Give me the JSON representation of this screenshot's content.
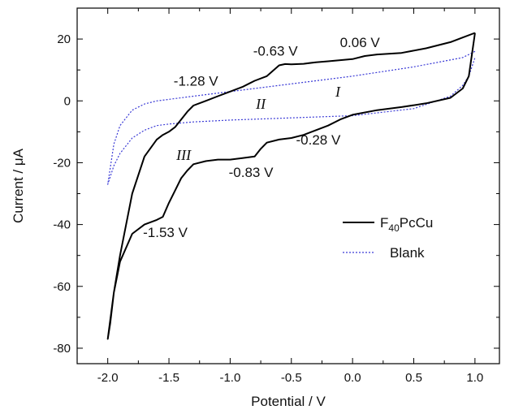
{
  "chart_data": {
    "type": "line",
    "xlabel": "Potential / V",
    "ylabel": "Current / μA",
    "xlim": [
      -2.25,
      1.2
    ],
    "ylim": [
      -85,
      30
    ],
    "xticks": [
      -2.0,
      -1.5,
      -1.0,
      -0.5,
      0.0,
      0.5,
      1.0
    ],
    "xtick_labels": [
      "-2.0",
      "-1.5",
      "-1.0",
      "-0.5",
      "0.0",
      "0.5",
      "1.0"
    ],
    "yticks": [
      20,
      0,
      -20,
      -40,
      -60,
      -80
    ],
    "ytick_labels": [
      "20",
      "0",
      "-20",
      "-40",
      "-60",
      "-80"
    ],
    "legend": {
      "placement": "bottom-right",
      "entries": [
        {
          "name": "F40PcCu",
          "base": "F",
          "subscript": "40",
          "rest": "PcCu",
          "color": "#000000",
          "style": "solid"
        },
        {
          "name": "Blank",
          "color": "#3a3ad6",
          "style": "dotted"
        }
      ]
    },
    "series": [
      {
        "name": "F40PcCu",
        "color": "#000000",
        "style": "solid",
        "x": [
          1.0,
          0.9,
          0.8,
          0.6,
          0.4,
          0.2,
          0.1,
          0.0,
          -0.2,
          -0.3,
          -0.4,
          -0.5,
          -0.55,
          -0.6,
          -0.7,
          -0.8,
          -0.85,
          -0.9,
          -1.0,
          -1.1,
          -1.2,
          -1.3,
          -1.35,
          -1.45,
          -1.5,
          -1.55,
          -1.6,
          -1.7,
          -1.8,
          -1.9,
          -1.95,
          -2.0,
          -1.98,
          -1.95,
          -1.9,
          -1.8,
          -1.7,
          -1.6,
          -1.55,
          -1.5,
          -1.45,
          -1.4,
          -1.35,
          -1.3,
          -1.2,
          -1.1,
          -1.0,
          -0.9,
          -0.8,
          -0.75,
          -0.7,
          -0.6,
          -0.5,
          -0.4,
          -0.3,
          -0.2,
          -0.1,
          0.0,
          0.2,
          0.4,
          0.6,
          0.8,
          0.9,
          0.95,
          1.0
        ],
        "y": [
          22.0,
          20.5,
          19.0,
          17.0,
          15.5,
          15.0,
          14.5,
          13.5,
          12.8,
          12.5,
          12.0,
          11.8,
          11.9,
          11.5,
          8.0,
          6.5,
          5.5,
          4.5,
          3.0,
          1.5,
          0.0,
          -1.5,
          -3.5,
          -8.5,
          -10.0,
          -11.0,
          -12.5,
          -18.0,
          -30.0,
          -50.0,
          -62.0,
          -77.0,
          -72.0,
          -62.0,
          -52.0,
          -43.0,
          -40.0,
          -38.5,
          -37.5,
          -33.0,
          -29.0,
          -25.0,
          -22.5,
          -20.5,
          -19.5,
          -19.0,
          -19.0,
          -18.5,
          -18.0,
          -15.5,
          -13.5,
          -12.5,
          -12.0,
          -11.0,
          -9.5,
          -8.0,
          -6.0,
          -4.5,
          -3.0,
          -2.0,
          -0.8,
          1.0,
          4.0,
          8.0,
          22.0
        ]
      },
      {
        "name": "Blank",
        "color": "#3a3ad6",
        "style": "dotted",
        "x": [
          1.0,
          0.9,
          0.5,
          0.0,
          -0.5,
          -1.0,
          -1.3,
          -1.5,
          -1.6,
          -1.7,
          -1.8,
          -1.9,
          -1.95,
          -2.0,
          -1.95,
          -1.9,
          -1.8,
          -1.7,
          -1.6,
          -1.5,
          -1.3,
          -1.0,
          -0.5,
          0.0,
          0.5,
          0.8,
          0.9,
          0.95,
          1.0
        ],
        "y": [
          16.0,
          14.0,
          11.0,
          8.0,
          5.5,
          3.0,
          1.5,
          0.5,
          0.0,
          -1.0,
          -3.0,
          -8.0,
          -14.0,
          -27.0,
          -21.0,
          -17.0,
          -12.0,
          -9.5,
          -8.0,
          -7.5,
          -6.8,
          -6.2,
          -5.5,
          -4.8,
          -2.5,
          1.5,
          5.0,
          8.0,
          14.0
        ]
      }
    ],
    "annotations": [
      {
        "text": "-0.63 V",
        "x": -0.63,
        "y": 14.7,
        "kind": "peak"
      },
      {
        "text": "0.06 V",
        "x": 0.06,
        "y": 17.4,
        "kind": "peak"
      },
      {
        "text": "-1.28 V",
        "x": -1.28,
        "y": 4.9,
        "kind": "peak"
      },
      {
        "text": "-0.28 V",
        "x": -0.28,
        "y": -14.1,
        "kind": "peak"
      },
      {
        "text": "-0.83 V",
        "x": -0.83,
        "y": -24.6,
        "kind": "peak"
      },
      {
        "text": "-1.53 V",
        "x": -1.53,
        "y": -44.0,
        "kind": "peak"
      },
      {
        "text": "I",
        "x": -0.12,
        "y": 1.4,
        "kind": "region"
      },
      {
        "text": "II",
        "x": -0.75,
        "y": -2.6,
        "kind": "region"
      },
      {
        "text": "III",
        "x": -1.38,
        "y": -19.1,
        "kind": "region"
      }
    ]
  }
}
